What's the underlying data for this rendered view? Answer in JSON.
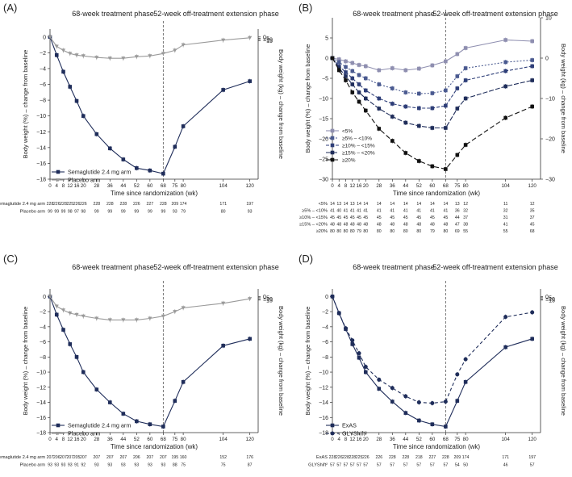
{
  "colors": {
    "semaglutide": "#1f2d5a",
    "placebo": "#9a9a9a",
    "axis": "#333333",
    "dashed_line": "#555555"
  },
  "chart_data": [
    {
      "panel": "(A)",
      "type": "line",
      "phase_labels": [
        "68-week treatment phase",
        "52-week off-treatment extension phase"
      ],
      "xlabel": "Time since randomization (wk)",
      "ylabel_left": "Body weight (%) – change from baseline",
      "ylabel_right": "Body weight (kg) – change from baseline",
      "x": [
        0,
        4,
        8,
        12,
        16,
        20,
        28,
        36,
        44,
        52,
        60,
        68,
        75,
        80,
        104,
        120
      ],
      "x_tick_labels": [
        "0",
        "4",
        "8",
        "12",
        "16",
        "20",
        "28",
        "36",
        "44",
        "52",
        "60",
        "68",
        "75",
        "80",
        "104",
        "120"
      ],
      "ylim": [
        -18,
        1
      ],
      "y_ticks_left": [
        "0",
        "−2",
        "−4",
        "−6",
        "−8",
        "−10",
        "−12",
        "−14",
        "−16",
        "−18"
      ],
      "y_ticks_right": [
        "0",
        "−5",
        "−10",
        "−15"
      ],
      "series": [
        {
          "name": "Semaglutide 2.4 mg arm",
          "values": [
            0,
            -2.3,
            -4.4,
            -6.3,
            -8.1,
            -10.0,
            -12.3,
            -14.1,
            -15.5,
            -16.6,
            -16.9,
            -17.3,
            -13.9,
            -11.3,
            -6.7,
            -5.6
          ]
        },
        {
          "name": "Placebo arm",
          "values": [
            0,
            -1.2,
            -1.7,
            -2.1,
            -2.3,
            -2.4,
            -2.6,
            -2.7,
            -2.7,
            -2.5,
            -2.4,
            -2.1,
            -1.7,
            -1.0,
            -0.4,
            -0.1
          ]
        }
      ],
      "at_risk": [
        {
          "label": "Semaglutide 2.4 mg arm",
          "values": [
            "228",
            "226",
            "228",
            "225",
            "226",
            "226",
            "228",
            "228",
            "228",
            "226",
            "227",
            "228",
            "209",
            "174",
            "171",
            "197"
          ]
        },
        {
          "label": "Placebo arm",
          "values": [
            "99",
            "99",
            "99",
            "98",
            "97",
            "98",
            "99",
            "99",
            "99",
            "99",
            "99",
            "99",
            "93",
            "79",
            "80",
            "93"
          ]
        }
      ]
    },
    {
      "panel": "(B)",
      "type": "line",
      "phase_labels": [
        "68-week treatment phase",
        "52-week off-treatment extension phase"
      ],
      "xlabel": "Time since randomization (wk)",
      "ylabel_left": "Body weight (%) – change from baseline",
      "ylabel_right": "Body weight (kg) – change from baseline",
      "x": [
        0,
        4,
        8,
        12,
        16,
        20,
        28,
        36,
        44,
        52,
        60,
        68,
        75,
        80,
        104,
        120
      ],
      "x_tick_labels": [
        "0",
        "4",
        "8",
        "12",
        "16",
        "20",
        "28",
        "36",
        "44",
        "52",
        "60",
        "68",
        "75",
        "80",
        "104",
        "120"
      ],
      "ylim": [
        -30,
        10
      ],
      "y_ticks_left": [
        "5",
        "0",
        "−5",
        "−10",
        "−15",
        "−20",
        "−25",
        "−30"
      ],
      "y_ticks_right": [
        "10",
        "0",
        "−10",
        "−20",
        "−30"
      ],
      "series": [
        {
          "name": "<5%",
          "values": [
            0,
            -0.3,
            -0.8,
            -1.2,
            -1.7,
            -2.0,
            -3.0,
            -2.5,
            -3.0,
            -2.6,
            -1.8,
            -0.8,
            1.0,
            2.5,
            4.5,
            4.2
          ]
        },
        {
          "name": "≥5% – <10%",
          "values": [
            0,
            -1.0,
            -2.2,
            -3.2,
            -4.2,
            -5.0,
            -6.5,
            -7.5,
            -8.5,
            -8.8,
            -8.7,
            -8.0,
            -4.5,
            -2.5,
            -1.0,
            -0.5
          ]
        },
        {
          "name": "≥10% – <15%",
          "values": [
            0,
            -2.0,
            -3.5,
            -5.0,
            -6.5,
            -8.0,
            -10.0,
            -11.3,
            -12.0,
            -12.4,
            -12.4,
            -11.8,
            -7.5,
            -5.5,
            -3.2,
            -2.0
          ]
        },
        {
          "name": "≥15% – <20%",
          "values": [
            0,
            -2.5,
            -4.5,
            -6.5,
            -8.5,
            -10.0,
            -12.5,
            -14.5,
            -16.0,
            -16.8,
            -17.3,
            -17.3,
            -12.5,
            -10.0,
            -7.0,
            -5.5
          ]
        },
        {
          "name": "≥20%",
          "values": [
            0,
            -3.0,
            -5.5,
            -8.5,
            -10.8,
            -13.0,
            -17.5,
            -20.5,
            -23.5,
            -25.5,
            -26.8,
            -27.5,
            -24.0,
            -21.5,
            -14.8,
            -12.0
          ]
        }
      ],
      "at_risk": [
        {
          "label": "<5%",
          "values": [
            "14",
            "13",
            "14",
            "13",
            "14",
            "14",
            "14",
            "14",
            "14",
            "14",
            "14",
            "14",
            "13",
            "12",
            "11",
            "12"
          ]
        },
        {
          "label": "≥5% – <10%",
          "values": [
            "41",
            "40",
            "41",
            "41",
            "41",
            "41",
            "41",
            "41",
            "41",
            "41",
            "41",
            "41",
            "36",
            "32",
            "32",
            "35"
          ]
        },
        {
          "label": "≥10% – <15%",
          "values": [
            "45",
            "45",
            "45",
            "45",
            "45",
            "45",
            "45",
            "45",
            "45",
            "45",
            "45",
            "45",
            "44",
            "37",
            "31",
            "37"
          ]
        },
        {
          "label": "≥15% – <20%",
          "values": [
            "48",
            "48",
            "48",
            "48",
            "48",
            "48",
            "48",
            "48",
            "48",
            "48",
            "48",
            "48",
            "47",
            "38",
            "41",
            "45"
          ]
        },
        {
          "label": "≥20%",
          "values": [
            "80",
            "80",
            "80",
            "80",
            "79",
            "80",
            "80",
            "80",
            "80",
            "80",
            "79",
            "80",
            "69",
            "55",
            "55",
            "68"
          ]
        }
      ]
    },
    {
      "panel": "(C)",
      "type": "line",
      "phase_labels": [
        "68-week treatment phase",
        "52-week off-treatment extension phase"
      ],
      "xlabel": "Time since randomization (wk)",
      "ylabel_left": "Body weight (%) – change from baseline",
      "ylabel_right": "Body weight (kg) – change from baseline",
      "x": [
        0,
        4,
        8,
        12,
        16,
        20,
        28,
        36,
        44,
        52,
        60,
        68,
        75,
        80,
        104,
        120
      ],
      "x_tick_labels": [
        "0",
        "4",
        "8",
        "12",
        "16",
        "20",
        "28",
        "36",
        "44",
        "52",
        "60",
        "68",
        "75",
        "80",
        "104",
        "120"
      ],
      "ylim": [
        -18,
        1
      ],
      "y_ticks_left": [
        "0",
        "−2",
        "−4",
        "−6",
        "−8",
        "−10",
        "−12",
        "−14",
        "−16",
        "−18"
      ],
      "y_ticks_right": [
        "0",
        "−5",
        "−10",
        "−15"
      ],
      "series": [
        {
          "name": "Semaglutide 2.4 mg arm",
          "values": [
            0,
            -2.4,
            -4.4,
            -6.3,
            -8.0,
            -10.0,
            -12.3,
            -14.0,
            -15.5,
            -16.5,
            -16.9,
            -17.2,
            -13.8,
            -11.3,
            -6.5,
            -5.6
          ]
        },
        {
          "name": "Placebo arm",
          "values": [
            0,
            -1.3,
            -1.8,
            -2.2,
            -2.4,
            -2.6,
            -2.9,
            -3.1,
            -3.1,
            -3.1,
            -2.9,
            -2.6,
            -2.0,
            -1.5,
            -0.9,
            -0.3
          ]
        }
      ],
      "at_risk": [
        {
          "label": "Semaglutide 2.4 mg arm",
          "values": [
            "207",
            "206",
            "207",
            "207",
            "205",
            "207",
            "207",
            "207",
            "207",
            "206",
            "207",
            "207",
            "195",
            "160",
            "152",
            "176"
          ]
        },
        {
          "label": "Placebo arm",
          "values": [
            "93",
            "93",
            "93",
            "93",
            "91",
            "92",
            "93",
            "93",
            "93",
            "93",
            "93",
            "93",
            "88",
            "75",
            "75",
            "87"
          ]
        }
      ]
    },
    {
      "panel": "(D)",
      "type": "line",
      "phase_labels": [
        "68-week treatment phase",
        "52-week off-treatment extension phase"
      ],
      "xlabel": "Time since randomization (wk)",
      "ylabel_left": "Body weight (%) – change from baseline",
      "ylabel_right": "Body weight (kg) – change from baseline",
      "x": [
        0,
        4,
        8,
        12,
        16,
        20,
        28,
        36,
        44,
        52,
        60,
        68,
        75,
        80,
        104,
        120
      ],
      "x_tick_labels": [
        "0",
        "4",
        "8",
        "12",
        "16",
        "20",
        "28",
        "36",
        "44",
        "52",
        "60",
        "68",
        "75",
        "80",
        "104",
        "120"
      ],
      "ylim": [
        -18,
        1
      ],
      "y_ticks_left": [
        "0",
        "−2",
        "−4",
        "−6",
        "−8",
        "−10",
        "−12",
        "−14",
        "−16",
        "−18"
      ],
      "y_ticks_right": [
        "0",
        "−5",
        "−10",
        "−15"
      ],
      "series": [
        {
          "name": "ExAS",
          "values": [
            0,
            -2.2,
            -4.3,
            -6.3,
            -8.1,
            -10.0,
            -12.2,
            -13.9,
            -15.4,
            -16.4,
            -16.9,
            -17.2,
            -13.8,
            -11.3,
            -6.7,
            -5.6
          ]
        },
        {
          "name": "GLYShift²",
          "values": [
            0,
            -2.2,
            -4.2,
            -5.8,
            -7.5,
            -9.3,
            -11.0,
            -12.1,
            -13.2,
            -14.0,
            -14.1,
            -13.9,
            -10.3,
            -8.3,
            -2.7,
            -2.1
          ]
        }
      ],
      "at_risk": [
        {
          "label": "ExAS",
          "values": [
            "228",
            "226",
            "228",
            "228",
            "225",
            "226",
            "226",
            "228",
            "228",
            "218",
            "227",
            "228",
            "209",
            "174",
            "171",
            "197"
          ]
        },
        {
          "label": "GLYShift²",
          "values": [
            "57",
            "57",
            "57",
            "57",
            "57",
            "57",
            "57",
            "57",
            "57",
            "57",
            "57",
            "57",
            "54",
            "50",
            "46",
            "57"
          ]
        }
      ]
    }
  ]
}
